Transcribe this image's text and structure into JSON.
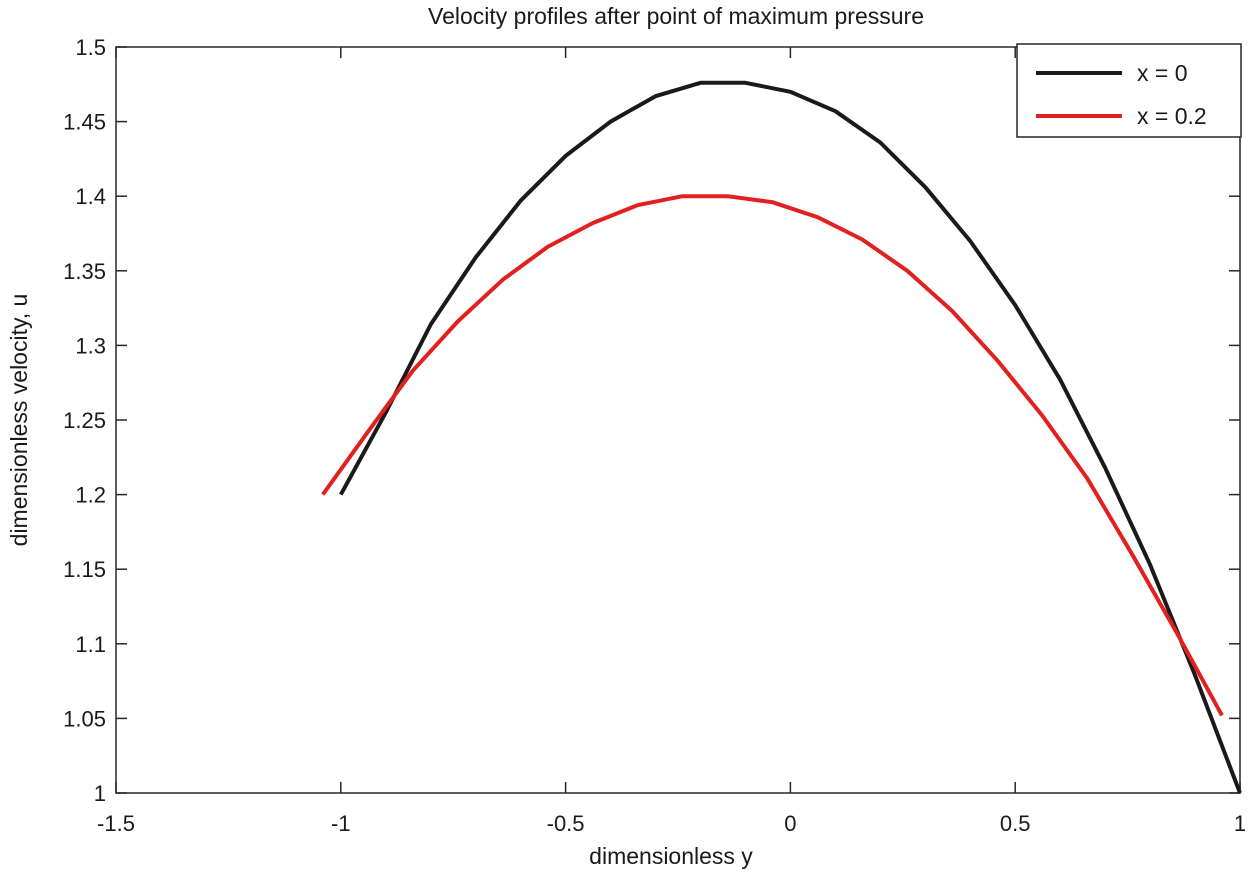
{
  "chart_data": {
    "type": "line",
    "title": "Velocity profiles after point of maximum pressure",
    "xlabel": "dimensionless y",
    "ylabel": "dimensionless velocity, u",
    "xlim": [
      -1.5,
      1
    ],
    "ylim": [
      1,
      1.5
    ],
    "xticks": [
      -1.5,
      -1,
      -0.5,
      0,
      0.5,
      1
    ],
    "xtick_labels": [
      "-1.5",
      "-1",
      "-0.5",
      "0",
      "0.5",
      "1"
    ],
    "yticks": [
      1,
      1.05,
      1.1,
      1.15,
      1.2,
      1.25,
      1.3,
      1.35,
      1.4,
      1.45,
      1.5
    ],
    "ytick_labels": [
      "1",
      "1.05",
      "1.1",
      "1.15",
      "1.2",
      "1.25",
      "1.3",
      "1.35",
      "1.4",
      "1.45",
      "1.5"
    ],
    "grid": false,
    "legend_position": "top-right",
    "series": [
      {
        "name": "x = 0",
        "color": "#1a1a1a",
        "x": [
          -1.0,
          -0.9,
          -0.8,
          -0.7,
          -0.6,
          -0.5,
          -0.4,
          -0.3,
          -0.2,
          -0.1,
          0.0,
          0.1,
          0.2,
          0.3,
          0.4,
          0.5,
          0.6,
          0.7,
          0.8,
          0.9,
          1.0
        ],
        "y": [
          1.2,
          1.255,
          1.314,
          1.359,
          1.397,
          1.427,
          1.45,
          1.467,
          1.476,
          1.476,
          1.47,
          1.457,
          1.436,
          1.406,
          1.37,
          1.327,
          1.277,
          1.218,
          1.153,
          1.079,
          1.0
        ]
      },
      {
        "name": "x = 0.2",
        "color": "#e32020",
        "x": [
          -1.04,
          -0.94,
          -0.84,
          -0.74,
          -0.64,
          -0.54,
          -0.44,
          -0.34,
          -0.24,
          -0.14,
          -0.04,
          0.06,
          0.16,
          0.26,
          0.36,
          0.46,
          0.56,
          0.66,
          0.76,
          0.86,
          0.96
        ],
        "y": [
          1.2,
          1.242,
          1.283,
          1.316,
          1.344,
          1.366,
          1.382,
          1.394,
          1.4,
          1.4,
          1.396,
          1.386,
          1.371,
          1.35,
          1.323,
          1.29,
          1.253,
          1.211,
          1.16,
          1.107,
          1.052
        ]
      }
    ]
  }
}
